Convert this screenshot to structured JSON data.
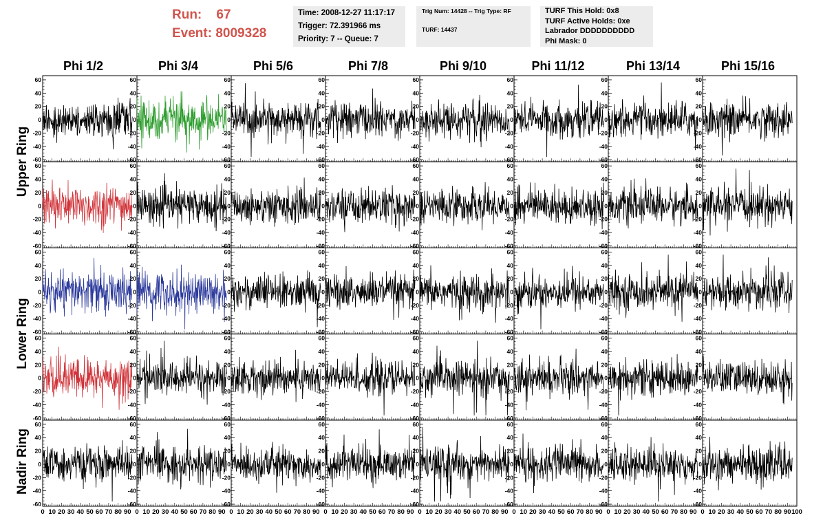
{
  "header": {
    "run_label": "Run:",
    "run_value": "67",
    "event_label": "Event:",
    "event_value": "8009328"
  },
  "info_time": {
    "time": "Time: 2008-12-27 11:17:17",
    "trigger": "Trigger: 72.391966 ms",
    "priority": "Priority: 7 -- Queue: 7"
  },
  "info_trig": {
    "trig": "Trig Num: 14428 -- Trig Type: RF",
    "turf": "TURF: 14437"
  },
  "info_turf": {
    "hold": "TURF This Hold: 0x8",
    "active": "TURF Active Holds: 0xe",
    "labrador": "Labrador DDDDDDDDDD",
    "phimask": "Phi Mask: 0"
  },
  "phi_headers": [
    "Phi 1/2",
    "Phi 3/4",
    "Phi 5/6",
    "Phi 7/8",
    "Phi 9/10",
    "Phi 11/12",
    "Phi 13/14",
    "Phi 15/16"
  ],
  "ring_labels": {
    "upper": "Upper Ring",
    "lower": "Lower Ring",
    "nadir": "Nadir Ring"
  },
  "chart_data": {
    "type": "line",
    "layout": "grid 5 rows x 8 columns of waveform panels",
    "y_ticks": [
      "60",
      "40",
      "20",
      "0",
      "-20",
      "-40",
      "-60"
    ],
    "x_ticks": [
      "0",
      "10",
      "20",
      "30",
      "40",
      "50",
      "60",
      "70",
      "80",
      "90",
      "100"
    ],
    "x_range": [
      0,
      100
    ],
    "y_range": [
      -60,
      60
    ],
    "waveform_extent": [
      0,
      95
    ],
    "panel_colors": [
      [
        "#000000",
        "#2f9e2f",
        "#000000",
        "#000000",
        "#000000",
        "#000000",
        "#000000",
        "#000000"
      ],
      [
        "#d0343a",
        "#000000",
        "#000000",
        "#000000",
        "#000000",
        "#000000",
        "#000000",
        "#000000"
      ],
      [
        "#2c3a9c",
        "#2c3a9c",
        "#000000",
        "#000000",
        "#000000",
        "#000000",
        "#000000",
        "#000000"
      ],
      [
        "#d0343a",
        "#000000",
        "#000000",
        "#000000",
        "#000000",
        "#000000",
        "#000000",
        "#000000"
      ],
      [
        "#000000",
        "#000000",
        "#000000",
        "#000000",
        "#000000",
        "#000000",
        "#000000",
        "#000000"
      ]
    ],
    "noise_amplitude": 16
  }
}
